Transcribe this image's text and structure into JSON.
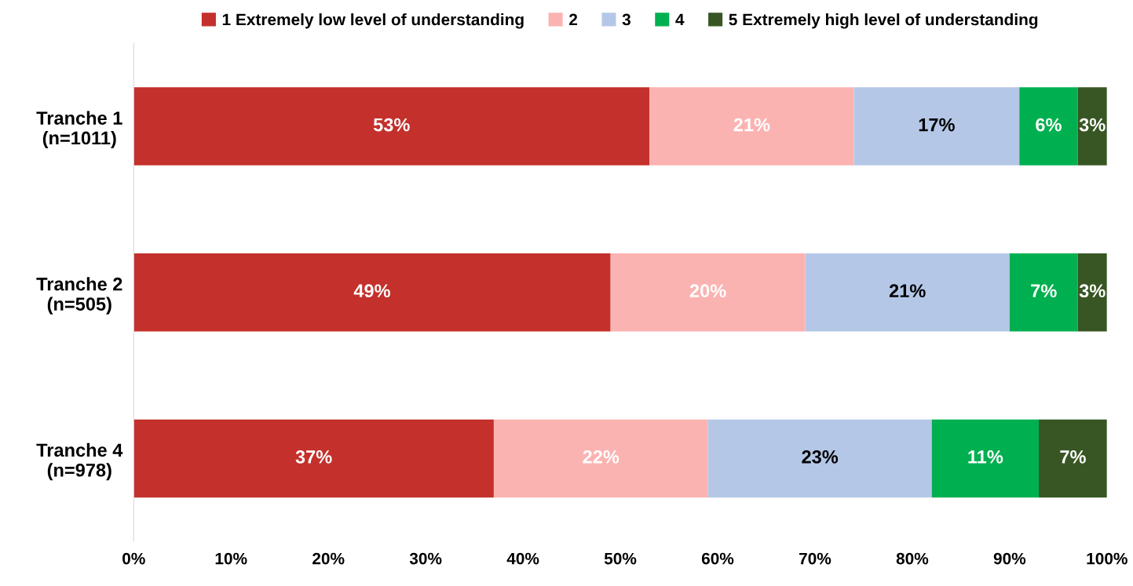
{
  "chart_data": {
    "type": "bar",
    "orientation": "horizontal",
    "stacked": true,
    "legend": "top",
    "grid": false,
    "categories": [
      "Tranche 1\n(n=1011)",
      "Tranche 2\n(n=505)",
      "Tranche 4\n(n=978)"
    ],
    "xlim": [
      0,
      100
    ],
    "xticks": [
      {
        "value": 0,
        "label": "0%"
      },
      {
        "value": 10,
        "label": "10%"
      },
      {
        "value": 20,
        "label": "20%"
      },
      {
        "value": 30,
        "label": "30%"
      },
      {
        "value": 40,
        "label": "40%"
      },
      {
        "value": 50,
        "label": "50%"
      },
      {
        "value": 60,
        "label": "60%"
      },
      {
        "value": 70,
        "label": "70%"
      },
      {
        "value": 80,
        "label": "80%"
      },
      {
        "value": 90,
        "label": "90%"
      },
      {
        "value": 100,
        "label": "100%"
      }
    ],
    "series": [
      {
        "name": "1 Extremely low level of understanding",
        "color": "#c4302b",
        "values": [
          53,
          49,
          37
        ],
        "value_labels": [
          "53%",
          "49%",
          "37%"
        ]
      },
      {
        "name": "2",
        "color": "#fbb3b1",
        "values": [
          21,
          20,
          22
        ],
        "value_labels": [
          "21%",
          "20%",
          "22%"
        ]
      },
      {
        "name": "3",
        "color": "#b4c7e7",
        "values": [
          17,
          21,
          23
        ],
        "value_labels": [
          "17%",
          "21%",
          "23%"
        ]
      },
      {
        "name": "4",
        "color": "#00b050",
        "values": [
          6,
          7,
          11
        ],
        "value_labels": [
          "6%",
          "7%",
          "11%"
        ]
      },
      {
        "name": "5 Extremely high level of understanding",
        "color": "#375623",
        "values": [
          3,
          3,
          7
        ],
        "value_labels": [
          "3%",
          "3%",
          "7%"
        ]
      }
    ]
  }
}
